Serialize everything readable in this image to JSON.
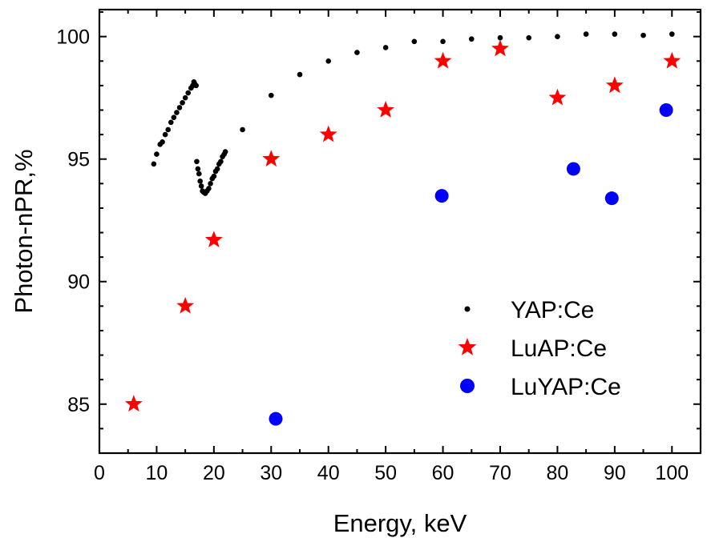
{
  "chart_data": {
    "type": "scatter",
    "xlabel": "Energy, keV",
    "ylabel": "Photon-nPR,%",
    "xlim": [
      0,
      105
    ],
    "ylim": [
      83,
      101.1
    ],
    "x_ticks": [
      0,
      10,
      20,
      30,
      40,
      50,
      60,
      70,
      80,
      90,
      100
    ],
    "y_ticks": [
      85,
      90,
      95,
      100
    ],
    "legend_position": "right-center",
    "grid": false,
    "series": [
      {
        "name": "YAP:Ce",
        "marker": "dot",
        "color": "#000000",
        "points": [
          [
            9.5,
            94.8
          ],
          [
            10.0,
            95.2
          ],
          [
            10.6,
            95.6
          ],
          [
            11.0,
            95.7
          ],
          [
            11.5,
            96.0
          ],
          [
            12.0,
            96.2
          ],
          [
            12.5,
            96.5
          ],
          [
            13.0,
            96.7
          ],
          [
            13.5,
            96.9
          ],
          [
            14.0,
            97.1
          ],
          [
            14.5,
            97.3
          ],
          [
            15.0,
            97.5
          ],
          [
            15.5,
            97.7
          ],
          [
            16.0,
            97.9
          ],
          [
            16.3,
            98.0
          ],
          [
            16.6,
            98.1
          ],
          [
            16.9,
            98.0
          ],
          [
            16.5,
            98.15
          ],
          [
            17.0,
            94.9
          ],
          [
            17.2,
            94.6
          ],
          [
            17.4,
            94.4
          ],
          [
            17.6,
            94.1
          ],
          [
            17.8,
            93.9
          ],
          [
            18.0,
            93.7
          ],
          [
            18.2,
            93.65
          ],
          [
            18.5,
            93.6
          ],
          [
            18.8,
            93.7
          ],
          [
            19.1,
            93.8
          ],
          [
            19.4,
            94.0
          ],
          [
            19.7,
            94.2
          ],
          [
            20.0,
            94.3
          ],
          [
            20.3,
            94.5
          ],
          [
            20.6,
            94.6
          ],
          [
            20.9,
            94.8
          ],
          [
            21.2,
            94.9
          ],
          [
            21.5,
            95.1
          ],
          [
            21.8,
            95.2
          ],
          [
            22.0,
            95.3
          ],
          [
            25,
            96.2
          ],
          [
            30,
            97.6
          ],
          [
            35,
            98.45
          ],
          [
            40,
            99.0
          ],
          [
            45,
            99.35
          ],
          [
            50,
            99.55
          ],
          [
            55,
            99.8
          ],
          [
            60,
            99.8
          ],
          [
            65,
            99.9
          ],
          [
            70,
            99.95
          ],
          [
            75,
            99.95
          ],
          [
            80,
            100.0
          ],
          [
            85,
            100.1
          ],
          [
            90,
            100.1
          ],
          [
            95,
            100.05
          ],
          [
            100,
            100.1
          ]
        ]
      },
      {
        "name": "LuAP:Ce",
        "marker": "star",
        "color": "#ff0000",
        "points": [
          [
            6,
            85.0
          ],
          [
            15,
            89.0
          ],
          [
            20,
            91.7
          ],
          [
            30,
            95.0
          ],
          [
            40,
            96.0
          ],
          [
            50,
            97.0
          ],
          [
            60,
            99.0
          ],
          [
            70,
            99.5
          ],
          [
            80,
            97.5
          ],
          [
            90,
            98.0
          ],
          [
            100,
            99.0
          ]
        ]
      },
      {
        "name": "LuYAP:Ce",
        "marker": "circle",
        "color": "#0000ff",
        "points": [
          [
            30.8,
            84.4
          ],
          [
            59.8,
            93.5
          ],
          [
            82.8,
            94.6
          ],
          [
            89.5,
            93.4
          ],
          [
            99,
            97.0
          ]
        ]
      }
    ]
  }
}
